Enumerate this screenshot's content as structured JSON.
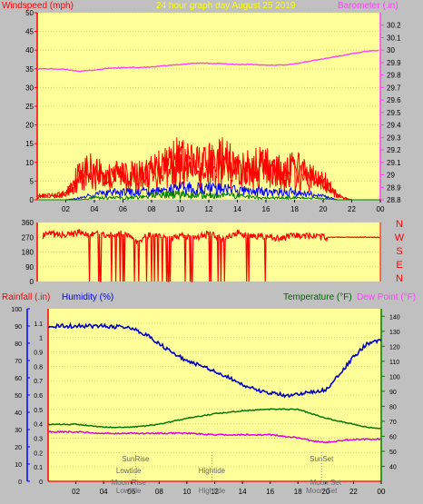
{
  "header": {
    "left_label": "Windspeed (mph)",
    "title": "24 hour graph day   August 25 2019",
    "right_label": "Barometer (.in)"
  },
  "bottom_header": {
    "rainfall_label": "Rainfall (.in)",
    "humidity_label": "Humidity (%)",
    "temperature_label": "Temperature (°F)",
    "dewpoint_label": "Dew Point (°F)"
  },
  "colors": {
    "plot_bg": "#ffff99",
    "frame_bg": "#c0c0c0",
    "windspeed": "#ff0000",
    "avg_wind": "#0000ff",
    "low_wind": "#008000",
    "barometer": "#ff40ff",
    "humidity": "#0000c8",
    "temperature": "#007800",
    "dewpoint": "#e000e0"
  },
  "chart_data": [
    {
      "type": "line",
      "panel": "wind-and-barometer",
      "x_ticks": [
        "02",
        "04",
        "06",
        "08",
        "10",
        "12",
        "14",
        "16",
        "18",
        "20",
        "22",
        "00"
      ],
      "ylim_left": [
        0,
        50
      ],
      "yticks_left": [
        0,
        5,
        10,
        15,
        20,
        25,
        30,
        35,
        40,
        45,
        50
      ],
      "ylim_right": [
        28.8,
        30.3
      ],
      "yticks_right": [
        "28.8",
        "28.9",
        "29",
        "29.1",
        "29.2",
        "29.3",
        "29.4",
        "29.5",
        "29.6",
        "29.7",
        "29.8",
        "29.9",
        "30",
        "30.1",
        "30.2"
      ],
      "series": [
        {
          "key": "barometer",
          "hours": [
            0,
            1,
            2,
            3,
            4,
            5,
            6,
            7,
            8,
            9,
            10,
            11,
            12,
            13,
            14,
            15,
            16,
            17,
            18,
            19,
            20,
            21,
            22,
            23,
            24
          ],
          "values": [
            29.85,
            29.85,
            29.845,
            29.83,
            29.84,
            29.855,
            29.86,
            29.86,
            29.865,
            29.875,
            29.885,
            29.895,
            29.895,
            29.89,
            29.885,
            29.885,
            29.88,
            29.88,
            29.89,
            29.91,
            29.93,
            29.95,
            29.97,
            29.99,
            30.0
          ]
        },
        {
          "key": "windspeed",
          "hours": [
            0,
            1,
            2,
            3,
            4,
            5,
            6,
            7,
            8,
            9,
            10,
            11,
            12,
            13,
            14,
            15,
            16,
            17,
            18,
            19,
            20,
            21,
            22,
            23,
            24
          ],
          "values": [
            1,
            1,
            1.5,
            7,
            8,
            6,
            7,
            6,
            7,
            10,
            10,
            9,
            9,
            10,
            8,
            8,
            9,
            7,
            8,
            6,
            5,
            1,
            0,
            0,
            0
          ]
        },
        {
          "key": "avg_wind",
          "hours": [
            0,
            2,
            3,
            4,
            6,
            8,
            10,
            12,
            14,
            16,
            18,
            20,
            21,
            22,
            24
          ],
          "values": [
            0,
            0,
            0.5,
            1.5,
            2,
            2,
            3,
            3,
            2.5,
            2,
            2,
            1,
            0,
            0,
            0
          ]
        },
        {
          "key": "low_wind",
          "hours": [
            0,
            3,
            4,
            6,
            8,
            10,
            12,
            14,
            16,
            18,
            20,
            21,
            24
          ],
          "values": [
            0,
            0,
            0.5,
            0.5,
            1,
            1.5,
            1,
            1,
            0.5,
            0.5,
            0.3,
            0,
            0
          ]
        }
      ]
    },
    {
      "type": "scatter",
      "panel": "wind-direction",
      "ylim": [
        0,
        360
      ],
      "yticks": [
        0,
        90,
        180,
        270,
        360
      ],
      "ytick_labels": [
        "0",
        "90",
        "180",
        "270",
        "360"
      ],
      "compass_labels": [
        "N",
        "W",
        "S",
        "E",
        "N"
      ],
      "hours": [
        0,
        1,
        2,
        3,
        4,
        5,
        6,
        7,
        8,
        9,
        10,
        11,
        12,
        13,
        14,
        15,
        16,
        17,
        18,
        19,
        20,
        21,
        22,
        23,
        24
      ],
      "values": [
        270,
        290,
        280,
        300,
        290,
        280,
        300,
        250,
        290,
        260,
        280,
        270,
        290,
        260,
        300,
        270,
        280,
        260,
        280,
        280,
        270,
        250,
        270,
        270,
        270
      ]
    },
    {
      "type": "line",
      "panel": "temperature-humidity",
      "x_ticks": [
        "02",
        "04",
        "06",
        "08",
        "10",
        "12",
        "14",
        "16",
        "18",
        "20",
        "22",
        "00"
      ],
      "ylim_left_rain": [
        0,
        1.2
      ],
      "yticks_left_rain": [
        "0",
        "0.1",
        "0.2",
        "0.3",
        "0.4",
        "0.5",
        "0.6",
        "0.7",
        "0.8",
        "0.9",
        "1",
        "1.1"
      ],
      "ylim_left_humidity": [
        0,
        100
      ],
      "yticks_left_humidity": [
        0,
        10,
        20,
        30,
        40,
        50,
        60,
        70,
        80,
        90,
        100
      ],
      "ylim_right": [
        30,
        145
      ],
      "yticks_right": [
        40,
        50,
        60,
        70,
        80,
        90,
        100,
        110,
        120,
        130,
        140
      ],
      "series": [
        {
          "key": "humidity",
          "hours": [
            0,
            2,
            4,
            6,
            7,
            8,
            9,
            10,
            11,
            12,
            13,
            14,
            15,
            16,
            17,
            18,
            19,
            20,
            21,
            22,
            23,
            24
          ],
          "values": [
            90,
            90,
            90,
            89,
            85,
            80,
            74,
            70,
            67,
            64,
            60,
            56,
            53,
            51,
            50,
            50,
            52,
            53,
            62,
            72,
            80,
            82
          ]
        },
        {
          "key": "temperature",
          "hours": [
            0,
            2,
            4,
            6,
            8,
            10,
            12,
            14,
            16,
            18,
            19,
            20,
            21,
            22,
            23,
            24
          ],
          "values": [
            68,
            68,
            66,
            66,
            68,
            72,
            75,
            77,
            78,
            78,
            75,
            72,
            70,
            68,
            66,
            65
          ]
        },
        {
          "key": "dewpoint",
          "hours": [
            0,
            2,
            4,
            6,
            8,
            10,
            12,
            14,
            16,
            18,
            19,
            20,
            21,
            22,
            24
          ],
          "values": [
            63,
            63,
            62,
            62,
            62,
            62,
            61,
            61,
            61,
            59,
            57,
            56,
            57,
            58,
            58
          ]
        },
        {
          "key": "rainfall",
          "hours": [
            0,
            24
          ],
          "values": [
            0,
            0
          ]
        }
      ],
      "annotations": [
        {
          "text": "SunRise",
          "hour": 6.3,
          "row": 0
        },
        {
          "text": "Lowtide",
          "hour": 5.8,
          "row": 1
        },
        {
          "text": "Moon Rise",
          "hour": 5.8,
          "row": 2
        },
        {
          "text": "Lowtide",
          "hour": 5.8,
          "row": 3
        },
        {
          "text": "Hightide",
          "hour": 11.8,
          "row": 1
        },
        {
          "text": "Hightide",
          "hour": 11.8,
          "row": 3
        },
        {
          "text": "SunSet",
          "hour": 19.7,
          "row": 0
        },
        {
          "text": "Moon Set",
          "hour": 20.0,
          "row": 2
        },
        {
          "text": "Moon Set",
          "hour": 19.7,
          "row": 3
        }
      ]
    }
  ]
}
